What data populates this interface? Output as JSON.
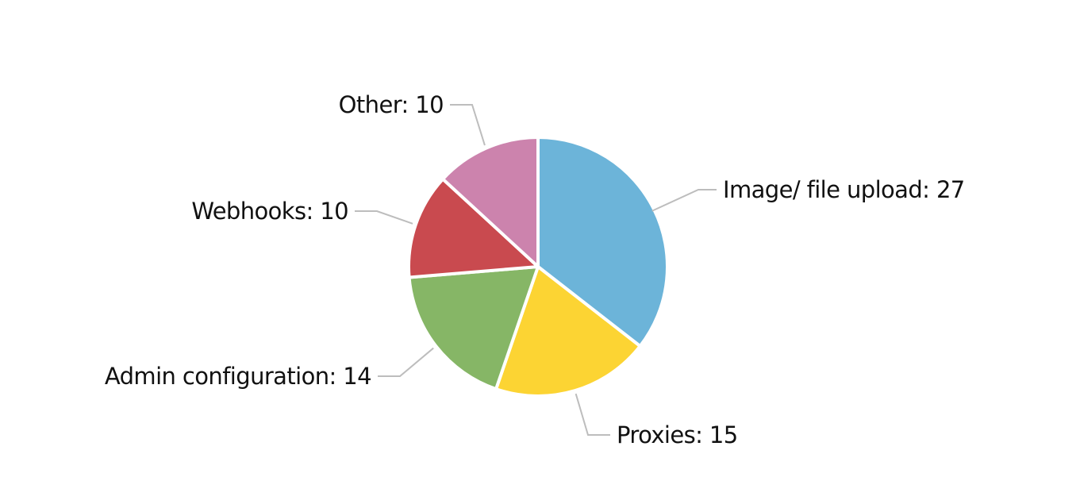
{
  "chart_data": {
    "type": "pie",
    "start": "top",
    "direction": "clockwise",
    "slices": [
      {
        "label": "Image/ file upload",
        "value": 27,
        "display": "Image/ file upload: 27",
        "color": "#6cb4d9"
      },
      {
        "label": "Proxies",
        "value": 15,
        "display": "Proxies: 15",
        "color": "#fcd433"
      },
      {
        "label": "Admin configuration",
        "value": 14,
        "display": "Admin configuration: 14",
        "color": "#86b666"
      },
      {
        "label": "Webhooks",
        "value": 10,
        "display": "Webhooks: 10",
        "color": "#c94a4f"
      },
      {
        "label": "Other",
        "value": 10,
        "display": "Other: 10",
        "color": "#cc83ad"
      }
    ]
  }
}
